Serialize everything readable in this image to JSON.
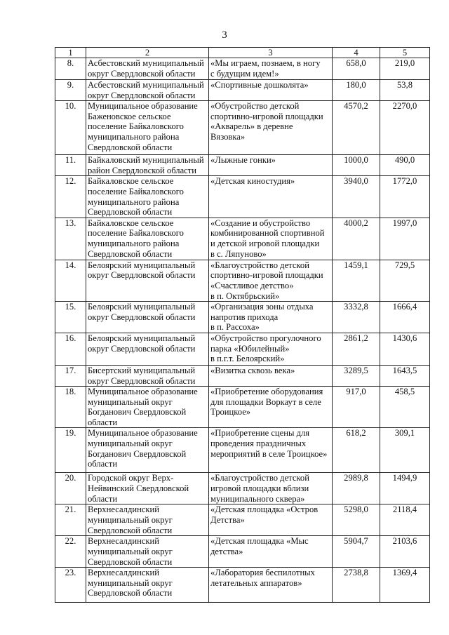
{
  "page_number": "3",
  "table": {
    "headers": [
      "1",
      "2",
      "3",
      "4",
      "5"
    ],
    "rows": [
      {
        "n": "8.",
        "municipality": "Асбестовский муниципальный\nокруг Свердловской области",
        "project": "«Мы играем, познаем, в ногу\nс будущим идем!»",
        "total": "658,0",
        "subsidy": "219,0"
      },
      {
        "n": "9.",
        "municipality": "Асбестовский муниципальный\nокруг Свердловской области",
        "project": "«Спортивные дошколята»",
        "total": "180,0",
        "subsidy": "53,8"
      },
      {
        "n": "10.",
        "municipality": "Муниципальное образование\nБаженовское сельское\nпоселение Байкаловского\nмуниципального района\nСвердловской области",
        "project": "«Обустройство детской\nспортивно-игровой площадки\n«Акварель» в деревне\nВязовка»",
        "total": "4570,2",
        "subsidy": "2270,0"
      },
      {
        "n": "11.",
        "municipality": "Байкаловский муниципальный\nрайон Свердловской области",
        "project": "«Лыжные гонки»",
        "total": "1000,0",
        "subsidy": "490,0"
      },
      {
        "n": "12.",
        "municipality": "Байкаловское сельское\nпоселение Байкаловского\nмуниципального района\nСвердловской области",
        "project": "«Детская киностудия»",
        "total": "3940,0",
        "subsidy": "1772,0"
      },
      {
        "n": "13.",
        "municipality": "Байкаловское сельское\nпоселение Байкаловского\nмуниципального района\nСвердловской области",
        "project": "«Создание и обустройство\nкомбинированной спортивной\nи детской игровой площадки\nв с. Ляпуново»",
        "total": "4000,2",
        "subsidy": "1997,0"
      },
      {
        "n": "14.",
        "municipality": "Белоярский муниципальный\nокруг Свердловской области",
        "project": "«Благоустройство детской\nспортивно-игровой площадки\n«Счастливое детство»\nв п. Октябрьский»",
        "total": "1459,1",
        "subsidy": "729,5"
      },
      {
        "n": "15.",
        "municipality": "Белоярский муниципальный\nокруг Свердловской области",
        "project": "«Организация зоны отдыха\nнапротив прихода\nв п. Рассоха»",
        "total": "3332,8",
        "subsidy": "1666,4"
      },
      {
        "n": "16.",
        "municipality": "Белоярский муниципальный\nокруг Свердловской области",
        "project": "«Обустройство прогулочного\nпарка «Юбилейный»\nв п.г.т. Белоярский»",
        "total": "2861,2",
        "subsidy": "1430,6"
      },
      {
        "n": "17.",
        "municipality": "Бисертский муниципальный\nокруг Свердловской области",
        "project": "«Визитка сквозь века»",
        "total": "3289,5",
        "subsidy": "1643,5"
      },
      {
        "n": "18.",
        "municipality": "Муниципальное образование\nмуниципальный округ\nБогданович Свердловской\nобласти",
        "project": "«Приобретение оборудования\nдля площадки Воркаут в селе\nТроицкое»",
        "total": "917,0",
        "subsidy": "458,5"
      },
      {
        "n": "19.",
        "municipality": "Муниципальное образование\nмуниципальный округ\nБогданович Свердловской\nобласти",
        "project": "«Приобретение сцены для\nпроведения праздничных\nмероприятий в селе Троицкое»",
        "total": "618,2",
        "subsidy": "309,1"
      },
      {
        "n": "20.",
        "municipality": "Городской округ Верх-\nНейвинский Свердловской\nобласти",
        "project": "«Благоустройство детской\nигровой площадки вблизи\nмуниципального сквера»",
        "total": "2989,8",
        "subsidy": "1494,9"
      },
      {
        "n": "21.",
        "municipality": "Верхнесалдинский\nмуниципальный округ\nСвердловской области",
        "project": "«Детская площадка «Остров\nДетства»",
        "total": "5298,0",
        "subsidy": "2118,4"
      },
      {
        "n": "22.",
        "municipality": "Верхнесалдинский\nмуниципальный округ\nСвердловской области",
        "project": "«Детская площадка «Мыс\nдетства»",
        "total": "5904,7",
        "subsidy": "2103,6"
      },
      {
        "n": "23.",
        "municipality": "Верхнесалдинский\nмуниципальный округ\nСвердловской области",
        "project": "«Лаборатория беспилотных\nлетательных аппаратов»",
        "total": "2738,8",
        "subsidy": "1369,4"
      }
    ]
  }
}
